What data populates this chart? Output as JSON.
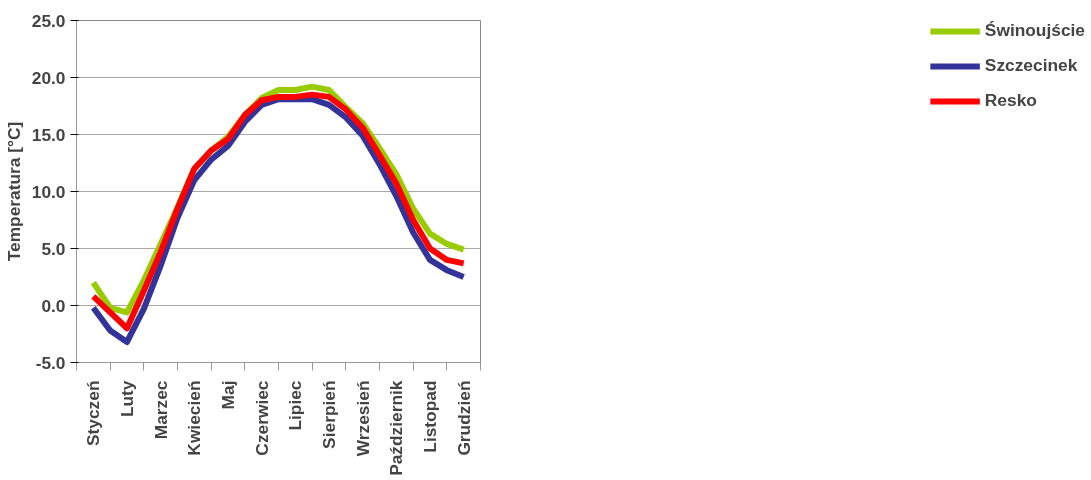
{
  "chart_data": {
    "type": "line",
    "ylabel": "Temperatura [°C]",
    "categories": [
      "Styczeń",
      null,
      "Luty",
      null,
      "Marzec",
      null,
      "Kwiecień",
      null,
      "Maj",
      null,
      "Czerwiec",
      null,
      "Lipiec",
      null,
      "Sierpień",
      null,
      "Wrzesień",
      null,
      "Październik",
      null,
      "Listopad",
      null,
      "Grudzień"
    ],
    "series": [
      {
        "name": "Świnoujście",
        "color": "#99cc00",
        "values": [
          2.0,
          -0.2,
          -0.6,
          2.2,
          5.4,
          8.6,
          12.0,
          13.6,
          14.8,
          16.7,
          18.2,
          18.9,
          18.9,
          19.2,
          18.9,
          17.4,
          16.0,
          13.8,
          11.5,
          8.5,
          6.3,
          5.4,
          4.9
        ]
      },
      {
        "name": "Szczecinek",
        "color": "#333399",
        "values": [
          -0.2,
          -2.2,
          -3.2,
          -0.3,
          3.5,
          7.7,
          11.0,
          12.8,
          14.0,
          16.1,
          17.6,
          18.1,
          18.1,
          18.1,
          17.6,
          16.5,
          14.9,
          12.4,
          9.6,
          6.4,
          4.0,
          3.1,
          2.5
        ]
      },
      {
        "name": "Resko",
        "color": "#ff0000",
        "values": [
          0.8,
          -0.6,
          -2.0,
          1.3,
          4.7,
          8.5,
          12.0,
          13.6,
          14.6,
          16.7,
          18.0,
          18.3,
          18.3,
          18.5,
          18.3,
          17.2,
          15.6,
          13.2,
          10.7,
          7.5,
          5.0,
          4.0,
          3.7
        ]
      }
    ],
    "ylim": [
      -5,
      25
    ],
    "yticks": [
      {
        "value": -5,
        "label": "-5.0"
      },
      {
        "value": 0,
        "label": "0.0"
      },
      {
        "value": 5,
        "label": "5.0"
      },
      {
        "value": 10,
        "label": "10.0"
      },
      {
        "value": 15,
        "label": "15.0"
      },
      {
        "value": 20,
        "label": "20.0"
      },
      {
        "value": 25,
        "label": "25.0"
      }
    ],
    "grid": true,
    "legend": "right",
    "marker": "none",
    "line_style": "solid"
  }
}
